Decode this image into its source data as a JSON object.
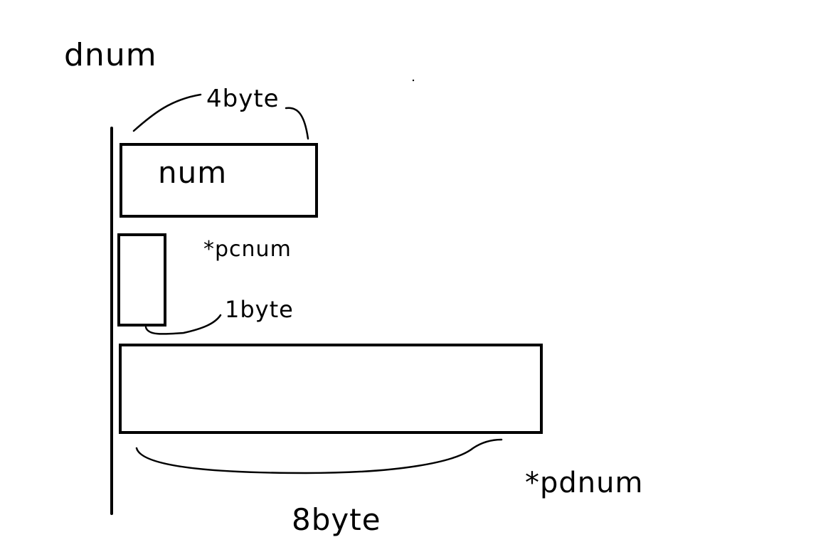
{
  "diagram": {
    "title": "dnum",
    "num_block": {
      "label": "num",
      "size_label": "4byte"
    },
    "char_block": {
      "label": "*pcnum",
      "size_label": "1byte"
    },
    "double_block": {
      "label": "*pdnum",
      "size_label": "8byte"
    },
    "colors": {
      "ink": "#000000",
      "background": "#ffffff"
    }
  }
}
